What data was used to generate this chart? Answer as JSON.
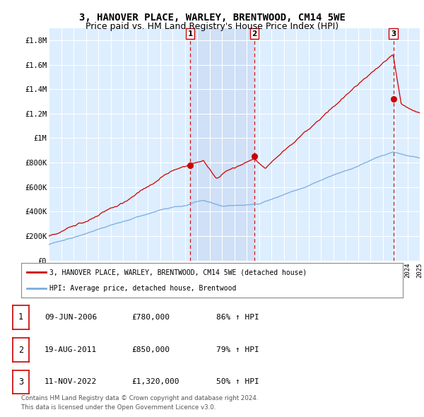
{
  "title": "3, HANOVER PLACE, WARLEY, BRENTWOOD, CM14 5WE",
  "subtitle": "Price paid vs. HM Land Registry's House Price Index (HPI)",
  "ylim": [
    0,
    1900000
  ],
  "yticks": [
    0,
    200000,
    400000,
    600000,
    800000,
    1000000,
    1200000,
    1400000,
    1600000,
    1800000
  ],
  "ytick_labels": [
    "£0",
    "£200K",
    "£400K",
    "£600K",
    "£800K",
    "£1M",
    "£1.2M",
    "£1.4M",
    "£1.6M",
    "£1.8M"
  ],
  "sale_info": [
    {
      "num": "1",
      "date": "09-JUN-2006",
      "price": "£780,000",
      "hpi": "86% ↑ HPI",
      "year": 2006.44
    },
    {
      "num": "2",
      "date": "19-AUG-2011",
      "price": "£850,000",
      "hpi": "79% ↑ HPI",
      "year": 2011.63
    },
    {
      "num": "3",
      "date": "11-NOV-2022",
      "price": "£1,320,000",
      "hpi": "50% ↑ HPI",
      "year": 2022.86
    }
  ],
  "sale_prices": [
    780000,
    850000,
    1320000
  ],
  "legend_line1": "3, HANOVER PLACE, WARLEY, BRENTWOOD, CM14 5WE (detached house)",
  "legend_line2": "HPI: Average price, detached house, Brentwood",
  "footer1": "Contains HM Land Registry data © Crown copyright and database right 2024.",
  "footer2": "This data is licensed under the Open Government Licence v3.0.",
  "red_color": "#cc0000",
  "blue_color": "#7aabe0",
  "vline_color": "#cc0000",
  "bg_plot": "#ddeeff",
  "shade_color": "#ccddf5",
  "grid_color": "#ffffff",
  "title_fontsize": 10,
  "subtitle_fontsize": 9
}
